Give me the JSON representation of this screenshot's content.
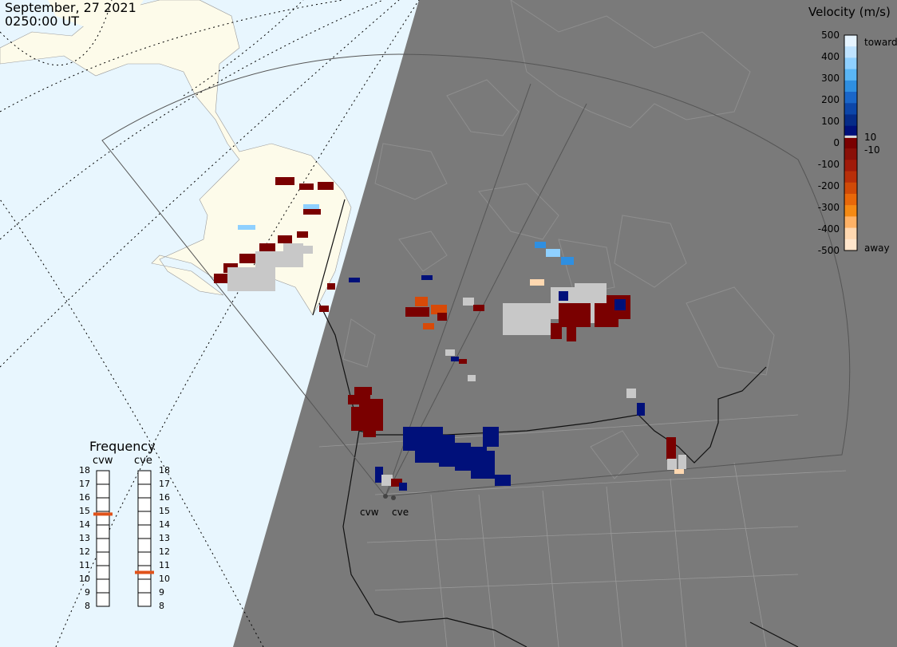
{
  "header": {
    "date": "September, 27 2021",
    "time": "0250:00 UT"
  },
  "velocity_legend": {
    "title": "Velocity (m/s)",
    "ticks": [
      "500",
      "400",
      "300",
      "200",
      "100",
      "0",
      "-100",
      "-200",
      "-300",
      "-400",
      "-500"
    ],
    "small_labels": [
      "10",
      "-10"
    ],
    "toward_label": "toward",
    "away_label": "away",
    "colors": {
      "toward": [
        "#d6efff",
        "#8fd0ff",
        "#3aa0f0",
        "#1a66c8",
        "#0a3aa0",
        "#00107a"
      ],
      "away": [
        "#7a0000",
        "#8a1008",
        "#b02a0a",
        "#d84a08",
        "#f0820a",
        "#ffc89a",
        "#ffe6cc"
      ]
    }
  },
  "frequency_panel": {
    "title": "Frequency",
    "radars": [
      {
        "name": "cvw",
        "value_mhz": 14.8
      },
      {
        "name": "cve",
        "value_mhz": 10.5
      }
    ],
    "ticks": [
      "18",
      "17",
      "16",
      "15",
      "14",
      "13",
      "12",
      "11",
      "10",
      "9",
      "8"
    ]
  },
  "radar_labels": [
    "cvw",
    "cve"
  ],
  "map_colors": {
    "ocean": "#e8f6fe",
    "land_day": "#fdfbea",
    "night": "#7a7a7a",
    "ground_scatter": "#c8c8c8"
  }
}
